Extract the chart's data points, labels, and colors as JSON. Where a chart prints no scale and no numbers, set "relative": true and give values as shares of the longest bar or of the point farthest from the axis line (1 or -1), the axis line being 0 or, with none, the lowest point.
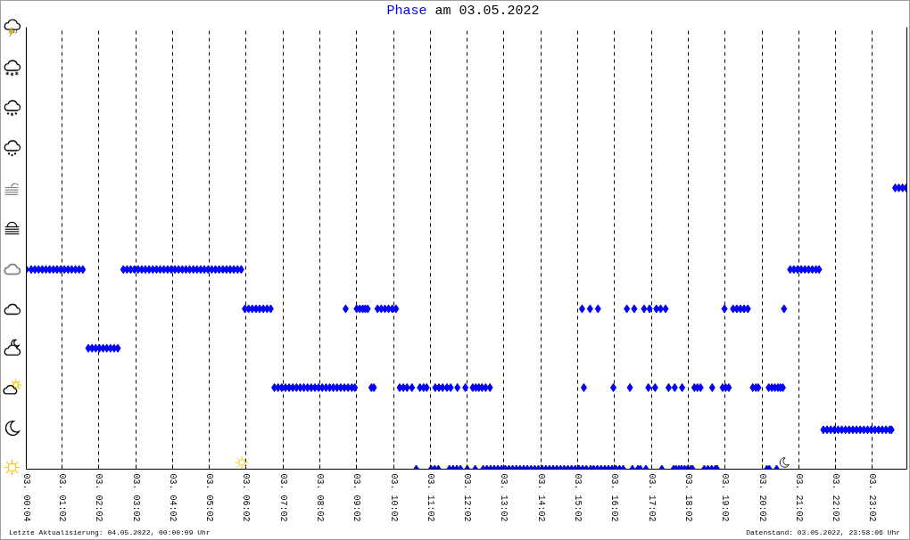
{
  "chart_data": {
    "type": "scatter",
    "title": "am 03.05.2022",
    "annotations": [
      "Letzte Aktualisierung: 04.05.2022, 00:00:09 Uhr",
      "Datenstand: 03.05.2022, 23:58:06 Uhr"
    ],
    "relative": true,
    "grid": "x",
    "marker": "diamond",
    "xlim": [
      "2022-05-03T00:04",
      "2022-05-03T23:58"
    ],
    "xticks": [
      {
        "value": "2022-05-03T00:04",
        "label": "03. 00:04"
      },
      {
        "value": "2022-05-03T01:02",
        "label": "03. 01:02"
      },
      {
        "value": "2022-05-03T02:02",
        "label": "03. 02:02"
      },
      {
        "value": "2022-05-03T03:02",
        "label": "03. 03:02"
      },
      {
        "value": "2022-05-03T04:02",
        "label": "03. 04:02"
      },
      {
        "value": "2022-05-03T05:02",
        "label": "03. 05:02"
      },
      {
        "value": "2022-05-03T06:02",
        "label": "03. 06:02"
      },
      {
        "value": "2022-05-03T07:02",
        "label": "03. 07:02"
      },
      {
        "value": "2022-05-03T08:02",
        "label": "03. 08:02"
      },
      {
        "value": "2022-05-03T09:02",
        "label": "03. 09:02"
      },
      {
        "value": "2022-05-03T10:02",
        "label": "03. 10:02"
      },
      {
        "value": "2022-05-03T11:02",
        "label": "03. 11:02"
      },
      {
        "value": "2022-05-03T12:02",
        "label": "03. 12:02"
      },
      {
        "value": "2022-05-03T13:02",
        "label": "03. 13:02"
      },
      {
        "value": "2022-05-03T14:02",
        "label": "03. 14:02"
      },
      {
        "value": "2022-05-03T15:02",
        "label": "03. 15:02"
      },
      {
        "value": "2022-05-03T16:02",
        "label": "03. 16:02"
      },
      {
        "value": "2022-05-03T17:02",
        "label": "03. 17:02"
      },
      {
        "value": "2022-05-03T18:02",
        "label": "03. 18:02"
      },
      {
        "value": "2022-05-03T19:02",
        "label": "03. 19:02"
      },
      {
        "value": "2022-05-03T20:02",
        "label": "03. 20:02"
      },
      {
        "value": "2022-05-03T21:02",
        "label": "03. 21:02"
      },
      {
        "value": "2022-05-03T22:02",
        "label": "03. 22:02"
      },
      {
        "value": "2022-05-03T23:02",
        "label": "03. 23:02"
      }
    ],
    "series": [
      {
        "name": "Phase",
        "color": "#0000ff",
        "x": [
          "2022-05-03T00:04",
          "2022-05-03T00:12",
          "2022-05-03T00:18",
          "2022-05-03T00:24",
          "2022-05-03T00:30",
          "2022-05-03T00:36",
          "2022-05-03T00:42",
          "2022-05-03T00:48",
          "2022-05-03T00:54",
          "2022-05-03T01:00",
          "2022-05-03T01:06",
          "2022-05-03T01:12",
          "2022-05-03T01:18",
          "2022-05-03T01:24",
          "2022-05-03T01:30",
          "2022-05-03T01:36",
          "2022-05-03T01:45",
          "2022-05-03T01:51",
          "2022-05-03T01:57",
          "2022-05-03T02:03",
          "2022-05-03T02:09",
          "2022-05-03T02:15",
          "2022-05-03T02:21",
          "2022-05-03T02:27",
          "2022-05-03T02:33",
          "2022-05-03T02:42",
          "2022-05-03T02:48",
          "2022-05-03T02:54",
          "2022-05-03T03:00",
          "2022-05-03T03:06",
          "2022-05-03T03:12",
          "2022-05-03T03:18",
          "2022-05-03T03:24",
          "2022-05-03T03:30",
          "2022-05-03T03:36",
          "2022-05-03T03:42",
          "2022-05-03T03:48",
          "2022-05-03T03:54",
          "2022-05-03T04:00",
          "2022-05-03T04:06",
          "2022-05-03T04:12",
          "2022-05-03T04:18",
          "2022-05-03T04:24",
          "2022-05-03T04:30",
          "2022-05-03T04:36",
          "2022-05-03T04:42",
          "2022-05-03T04:48",
          "2022-05-03T04:54",
          "2022-05-03T05:00",
          "2022-05-03T05:06",
          "2022-05-03T05:12",
          "2022-05-03T05:18",
          "2022-05-03T05:24",
          "2022-05-03T05:30",
          "2022-05-03T05:36",
          "2022-05-03T05:42",
          "2022-05-03T05:48",
          "2022-05-03T05:54",
          "2022-05-03T06:00",
          "2022-05-03T06:06",
          "2022-05-03T06:12",
          "2022-05-03T06:18",
          "2022-05-03T06:24",
          "2022-05-03T06:30",
          "2022-05-03T06:36",
          "2022-05-03T06:42",
          "2022-05-03T06:48",
          "2022-05-03T06:54",
          "2022-05-03T07:00",
          "2022-05-03T07:06",
          "2022-05-03T07:12",
          "2022-05-03T07:18",
          "2022-05-03T07:24",
          "2022-05-03T07:30",
          "2022-05-03T07:36",
          "2022-05-03T07:42",
          "2022-05-03T07:48",
          "2022-05-03T07:54",
          "2022-05-03T08:00",
          "2022-05-03T08:06",
          "2022-05-03T08:12",
          "2022-05-03T08:18",
          "2022-05-03T08:24",
          "2022-05-03T08:30",
          "2022-05-03T08:36",
          "2022-05-03T08:42",
          "2022-05-03T08:44",
          "2022-05-03T08:48",
          "2022-05-03T08:54",
          "2022-05-03T08:59",
          "2022-05-03T09:02",
          "2022-05-03T09:07",
          "2022-05-03T09:12",
          "2022-05-03T09:16",
          "2022-05-03T09:20",
          "2022-05-03T09:26",
          "2022-05-03T09:30",
          "2022-05-03T09:36",
          "2022-05-03T09:42",
          "2022-05-03T09:48",
          "2022-05-03T09:54",
          "2022-05-03T10:00",
          "2022-05-03T10:06",
          "2022-05-03T10:12",
          "2022-05-03T10:18",
          "2022-05-03T10:24",
          "2022-05-03T10:32",
          "2022-05-03T10:39",
          "2022-05-03T10:45",
          "2022-05-03T10:51",
          "2022-05-03T10:56",
          "2022-05-03T11:03",
          "2022-05-03T11:09",
          "2022-05-03T11:10",
          "2022-05-03T11:15",
          "2022-05-03T11:16",
          "2022-05-03T11:22",
          "2022-05-03T11:29",
          "2022-05-03T11:33",
          "2022-05-03T11:35",
          "2022-05-03T11:39",
          "2022-05-03T11:45",
          "2022-05-03T11:46",
          "2022-05-03T11:51",
          "2022-05-03T11:59",
          "2022-05-03T12:02",
          "2022-05-03T12:11",
          "2022-05-03T12:15",
          "2022-05-03T12:16",
          "2022-05-03T12:21",
          "2022-05-03T12:26",
          "2022-05-03T12:28",
          "2022-05-03T12:32",
          "2022-05-03T12:34",
          "2022-05-03T12:39",
          "2022-05-03T12:40",
          "2022-05-03T12:46",
          "2022-05-03T12:52",
          "2022-05-03T12:58",
          "2022-05-03T13:04",
          "2022-05-03T13:10",
          "2022-05-03T13:16",
          "2022-05-03T13:22",
          "2022-05-03T13:28",
          "2022-05-03T13:34",
          "2022-05-03T13:40",
          "2022-05-03T13:46",
          "2022-05-03T13:52",
          "2022-05-03T13:58",
          "2022-05-03T14:04",
          "2022-05-03T14:10",
          "2022-05-03T14:16",
          "2022-05-03T14:22",
          "2022-05-03T14:28",
          "2022-05-03T14:34",
          "2022-05-03T14:40",
          "2022-05-03T14:46",
          "2022-05-03T14:52",
          "2022-05-03T14:58",
          "2022-05-03T15:04",
          "2022-05-03T15:09",
          "2022-05-03T15:10",
          "2022-05-03T15:12",
          "2022-05-03T15:16",
          "2022-05-03T15:22",
          "2022-05-03T15:23",
          "2022-05-03T15:28",
          "2022-05-03T15:34",
          "2022-05-03T15:35",
          "2022-05-03T15:40",
          "2022-05-03T15:46",
          "2022-05-03T15:52",
          "2022-05-03T15:58",
          "2022-05-03T16:00",
          "2022-05-03T16:04",
          "2022-05-03T16:10",
          "2022-05-03T16:16",
          "2022-05-03T16:22",
          "2022-05-03T16:27",
          "2022-05-03T16:31",
          "2022-05-03T16:34",
          "2022-05-03T16:40",
          "2022-05-03T16:44",
          "2022-05-03T16:50",
          "2022-05-03T16:53",
          "2022-05-03T16:57",
          "2022-05-03T16:59",
          "2022-05-03T17:08",
          "2022-05-03T17:10",
          "2022-05-03T17:17",
          "2022-05-03T17:19",
          "2022-05-03T17:25",
          "2022-05-03T17:30",
          "2022-05-03T17:38",
          "2022-05-03T17:40",
          "2022-05-03T17:42",
          "2022-05-03T17:47",
          "2022-05-03T17:51",
          "2022-05-03T17:52",
          "2022-05-03T17:56",
          "2022-05-03T18:01",
          "2022-05-03T18:06",
          "2022-05-03T18:09",
          "2022-05-03T18:12",
          "2022-05-03T18:17",
          "2022-05-03T18:22",
          "2022-05-03T18:28",
          "2022-05-03T18:34",
          "2022-05-03T18:40",
          "2022-05-03T18:41",
          "2022-05-03T18:46",
          "2022-05-03T18:49",
          "2022-05-03T18:58",
          "2022-05-03T19:01",
          "2022-05-03T19:03",
          "2022-05-03T19:08",
          "2022-05-03T19:15",
          "2022-05-03T19:21",
          "2022-05-03T19:27",
          "2022-05-03T19:33",
          "2022-05-03T19:39",
          "2022-05-03T19:47",
          "2022-05-03T19:52",
          "2022-05-03T19:56",
          "2022-05-03T20:10",
          "2022-05-03T20:13",
          "2022-05-03T20:14",
          "2022-05-03T20:18",
          "2022-05-03T20:23",
          "2022-05-03T20:26",
          "2022-05-03T20:28",
          "2022-05-03T20:32",
          "2022-05-03T20:36",
          "2022-05-03T20:38",
          "2022-05-03T20:48",
          "2022-05-03T20:54",
          "2022-05-03T21:00",
          "2022-05-03T21:06",
          "2022-05-03T21:12",
          "2022-05-03T21:18",
          "2022-05-03T21:24",
          "2022-05-03T21:30",
          "2022-05-03T21:35",
          "2022-05-03T21:42",
          "2022-05-03T21:48",
          "2022-05-03T21:54",
          "2022-05-03T22:00",
          "2022-05-03T22:06",
          "2022-05-03T22:12",
          "2022-05-03T22:18",
          "2022-05-03T22:24",
          "2022-05-03T22:30",
          "2022-05-03T22:36",
          "2022-05-03T22:42",
          "2022-05-03T22:48",
          "2022-05-03T22:54",
          "2022-05-03T23:00",
          "2022-05-03T23:06",
          "2022-05-03T23:12",
          "2022-05-03T23:18",
          "2022-05-03T23:24",
          "2022-05-03T23:30",
          "2022-05-03T23:33",
          "2022-05-03T23:39",
          "2022-05-03T23:45",
          "2022-05-03T23:51",
          "2022-05-03T23:57"
        ],
        "values": [
          0.71,
          0.71,
          0.71,
          0.71,
          0.71,
          0.71,
          0.71,
          0.71,
          0.71,
          0.71,
          0.71,
          0.71,
          0.71,
          0.71,
          0.71,
          0.71,
          0.43,
          0.43,
          0.43,
          0.43,
          0.43,
          0.43,
          0.43,
          0.43,
          0.43,
          0.71,
          0.71,
          0.71,
          0.71,
          0.71,
          0.71,
          0.71,
          0.71,
          0.71,
          0.71,
          0.71,
          0.71,
          0.71,
          0.71,
          0.71,
          0.71,
          0.71,
          0.71,
          0.71,
          0.71,
          0.71,
          0.71,
          0.71,
          0.71,
          0.71,
          0.71,
          0.71,
          0.71,
          0.71,
          0.71,
          0.71,
          0.71,
          0.71,
          0.57,
          0.57,
          0.57,
          0.57,
          0.57,
          0.57,
          0.57,
          0.57,
          0.29,
          0.29,
          0.29,
          0.29,
          0.29,
          0.29,
          0.29,
          0.29,
          0.29,
          0.29,
          0.29,
          0.29,
          0.29,
          0.29,
          0.29,
          0.29,
          0.29,
          0.29,
          0.29,
          0.29,
          0.57,
          0.29,
          0.29,
          0.29,
          0.57,
          0.57,
          0.57,
          0.57,
          0.57,
          0.29,
          0.29,
          0.57,
          0.57,
          0.57,
          0.57,
          0.57,
          0.57,
          0.29,
          0.29,
          0.29,
          0.29,
          0,
          0.29,
          0.29,
          0.29,
          0,
          0,
          0.29,
          0,
          0.29,
          0.29,
          0.29,
          0,
          0.29,
          0,
          0,
          0.29,
          0,
          0.29,
          0,
          0.29,
          0,
          0.29,
          0.29,
          0.29,
          0,
          0.29,
          0,
          0.29,
          0,
          0,
          0,
          0,
          0,
          0,
          0,
          0,
          0,
          0,
          0,
          0,
          0,
          0,
          0,
          0,
          0,
          0,
          0,
          0,
          0,
          0,
          0,
          0,
          0,
          0.57,
          0,
          0.29,
          0,
          0.57,
          0,
          0,
          0,
          0.57,
          0,
          0,
          0,
          0,
          0.29,
          0,
          0,
          0,
          0.57,
          0.29,
          0,
          0.57,
          0,
          0,
          0.57,
          0,
          0.29,
          0.57,
          0.29,
          0.57,
          0.57,
          0,
          0.57,
          0.29,
          0,
          0.29,
          0,
          0,
          0,
          0.29,
          0,
          0,
          0,
          0,
          0.29,
          0.29,
          0.29,
          0,
          0,
          0,
          0.29,
          0,
          0,
          0.29,
          0.57,
          0.29,
          0.29,
          0.57,
          0.57,
          0.57,
          0.57,
          0.57,
          0.29,
          0.29,
          0.29,
          0,
          0.29,
          0,
          0.29,
          0.29,
          0,
          0.29,
          0.29,
          0.29,
          0.57,
          0.71,
          0.71,
          0.71,
          0.71,
          0.71,
          0.71,
          0.71,
          0.71,
          0.71,
          0.14,
          0.14,
          0.14,
          0.14,
          0.14,
          0.14,
          0.14,
          0.14,
          0.14,
          0.14,
          0.14,
          0.14,
          0.14,
          0.14,
          0.14,
          0.14,
          0.14,
          0.14,
          0.14,
          0.14,
          1,
          1,
          1,
          1
        ]
      }
    ]
  }
}
